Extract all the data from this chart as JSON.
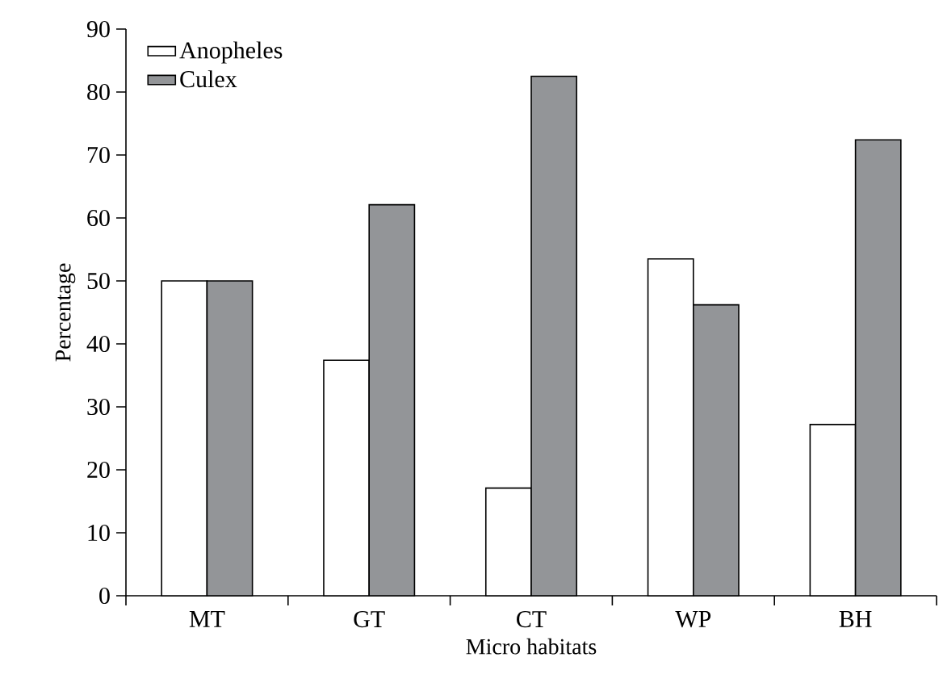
{
  "chart_data": {
    "type": "bar",
    "xlabel": "Micro habitats",
    "ylabel": "Percentage",
    "categories": [
      "MT",
      "GT",
      "CT",
      "WP",
      "BH"
    ],
    "series": [
      {
        "name": "Anopheles",
        "color": "#ffffff",
        "values": [
          50,
          37.4,
          17.1,
          53.5,
          27.2
        ]
      },
      {
        "name": "Culex",
        "color": "#939598",
        "values": [
          50,
          62.1,
          82.5,
          46.2,
          72.4
        ]
      }
    ],
    "ylim": [
      0,
      90
    ],
    "yticks": [
      0,
      10,
      20,
      30,
      40,
      50,
      60,
      70,
      80,
      90
    ],
    "grid": false,
    "legend": "top left"
  }
}
